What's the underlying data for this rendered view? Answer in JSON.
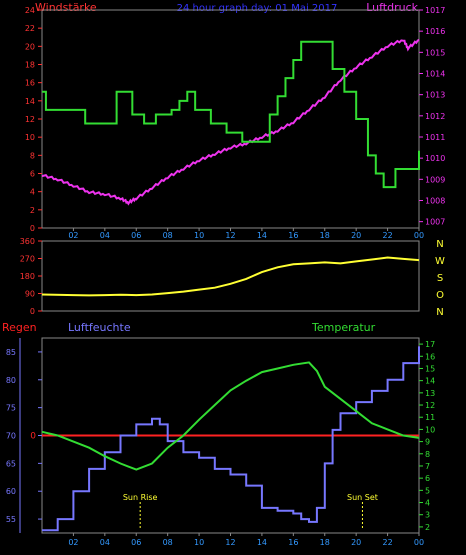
{
  "header": {
    "left_label": "Windstärke",
    "title": "24 hour graph day: 01 Mai 2017",
    "right_label": "Luftdruck"
  },
  "colors": {
    "wind": "#33dd33",
    "pressure": "#ee33ee",
    "direction": "#ffff33",
    "humidity": "#7777ff",
    "temperature": "#33dd33",
    "rain": "#ff2222",
    "axis_left": "#ff3333",
    "axis_right": "#ee33ee",
    "axis_hum": "#7777ff",
    "axis_temp": "#33dd33",
    "time": "#3399ff",
    "dir": "#ffff33"
  },
  "hour_labels": [
    "02",
    "04",
    "06",
    "08",
    "10",
    "12",
    "14",
    "16",
    "18",
    "20",
    "22",
    "00"
  ],
  "chart_data": [
    {
      "type": "line",
      "name": "wind-pressure",
      "x_hours": [
        0,
        24
      ],
      "left_axis": {
        "label": "Windstärke",
        "ticks": [
          0,
          2,
          4,
          6,
          8,
          10,
          12,
          14,
          16,
          18,
          20,
          22,
          24
        ],
        "range": [
          0,
          24
        ]
      },
      "right_axis": {
        "label": "Luftdruck",
        "ticks": [
          1007,
          1008,
          1009,
          1010,
          1011,
          1012,
          1013,
          1014,
          1015,
          1016,
          1017
        ],
        "range": [
          1006.7,
          1017
        ]
      },
      "wind_steps": [
        [
          0,
          15
        ],
        [
          0.25,
          13
        ],
        [
          2.75,
          11.5
        ],
        [
          4.75,
          15
        ],
        [
          5.75,
          12.5
        ],
        [
          6.5,
          11.5
        ],
        [
          7.25,
          12.5
        ],
        [
          8.25,
          13
        ],
        [
          8.75,
          14
        ],
        [
          9.25,
          15
        ],
        [
          9.75,
          13
        ],
        [
          10.75,
          11.5
        ],
        [
          11.75,
          10.5
        ],
        [
          12.75,
          9.5
        ],
        [
          14.5,
          12.5
        ],
        [
          15,
          14.5
        ],
        [
          15.5,
          16.5
        ],
        [
          16,
          18.5
        ],
        [
          16.5,
          20.5
        ],
        [
          18.5,
          17.5
        ],
        [
          19.25,
          15
        ],
        [
          20,
          12
        ],
        [
          20.75,
          8
        ],
        [
          21.25,
          6
        ],
        [
          21.75,
          4.5
        ],
        [
          22.5,
          6.5
        ],
        [
          24,
          8.5
        ]
      ],
      "pressure": [
        [
          0,
          1009.2
        ],
        [
          1,
          1009
        ],
        [
          2,
          1008.7
        ],
        [
          3,
          1008.4
        ],
        [
          4,
          1008.3
        ],
        [
          5,
          1008.1
        ],
        [
          5.5,
          1007.9
        ],
        [
          6,
          1008.1
        ],
        [
          7,
          1008.6
        ],
        [
          8,
          1009.1
        ],
        [
          9,
          1009.5
        ],
        [
          10,
          1009.9
        ],
        [
          11,
          1010.2
        ],
        [
          12,
          1010.5
        ],
        [
          13,
          1010.7
        ],
        [
          14,
          1011
        ],
        [
          15,
          1011.3
        ],
        [
          16,
          1011.7
        ],
        [
          17,
          1012.3
        ],
        [
          18,
          1012.9
        ],
        [
          19,
          1013.7
        ],
        [
          20,
          1014.3
        ],
        [
          21,
          1014.8
        ],
        [
          22,
          1015.3
        ],
        [
          23,
          1015.6
        ],
        [
          23.3,
          1015.2
        ],
        [
          24,
          1015.6
        ]
      ]
    },
    {
      "type": "line",
      "name": "wind-direction",
      "left_axis": {
        "ticks": [
          0,
          90,
          180,
          270,
          360
        ],
        "range": [
          0,
          360
        ]
      },
      "right_labels": [
        "N",
        "W",
        "S",
        "O",
        "N"
      ],
      "direction": [
        [
          0,
          85
        ],
        [
          2,
          82
        ],
        [
          3,
          80
        ],
        [
          4,
          82
        ],
        [
          5,
          84
        ],
        [
          6,
          82
        ],
        [
          7,
          85
        ],
        [
          8,
          92
        ],
        [
          9,
          100
        ],
        [
          10,
          110
        ],
        [
          11,
          120
        ],
        [
          12,
          140
        ],
        [
          13,
          165
        ],
        [
          14,
          200
        ],
        [
          15,
          225
        ],
        [
          16,
          240
        ],
        [
          17,
          245
        ],
        [
          18,
          250
        ],
        [
          19,
          245
        ],
        [
          20,
          255
        ],
        [
          21,
          265
        ],
        [
          22,
          275
        ],
        [
          23,
          268
        ],
        [
          24,
          262
        ]
      ]
    },
    {
      "type": "line",
      "name": "hum-temp",
      "left_labels": {
        "rain": "Regen",
        "humidity": "Luftfeuchte"
      },
      "right_label": "Temperatur",
      "hum_axis": {
        "ticks": [
          55,
          60,
          65,
          70,
          75,
          80,
          85
        ],
        "range": [
          52.5,
          87.5
        ]
      },
      "temp_axis": {
        "ticks": [
          2,
          3,
          4,
          5,
          6,
          7,
          8,
          9,
          10,
          11,
          12,
          13,
          14,
          15,
          16,
          17
        ],
        "range": [
          1.5,
          17.5
        ]
      },
      "rain": {
        "value": 0,
        "label": "0"
      },
      "humidity": [
        [
          0,
          53
        ],
        [
          1,
          55
        ],
        [
          2,
          60
        ],
        [
          3,
          64
        ],
        [
          4,
          67
        ],
        [
          5,
          70
        ],
        [
          6,
          72
        ],
        [
          7,
          73
        ],
        [
          7.5,
          72
        ],
        [
          8,
          69
        ],
        [
          9,
          67
        ],
        [
          10,
          66
        ],
        [
          11,
          64
        ],
        [
          12,
          63
        ],
        [
          13,
          61
        ],
        [
          14,
          57
        ],
        [
          15,
          56.5
        ],
        [
          16,
          56
        ],
        [
          16.5,
          55
        ],
        [
          17,
          54.5
        ],
        [
          17.5,
          57
        ],
        [
          18,
          65
        ],
        [
          18.5,
          71
        ],
        [
          19,
          74
        ],
        [
          20,
          76
        ],
        [
          21,
          78
        ],
        [
          22,
          80
        ],
        [
          23,
          83
        ],
        [
          24,
          86
        ]
      ],
      "temperature": [
        [
          0,
          9.8
        ],
        [
          1,
          9.5
        ],
        [
          2,
          9
        ],
        [
          3,
          8.5
        ],
        [
          4,
          7.8
        ],
        [
          5,
          7.2
        ],
        [
          6,
          6.7
        ],
        [
          7,
          7.2
        ],
        [
          8,
          8.5
        ],
        [
          9,
          9.5
        ],
        [
          10,
          10.8
        ],
        [
          11,
          12
        ],
        [
          12,
          13.2
        ],
        [
          13,
          14
        ],
        [
          14,
          14.7
        ],
        [
          15,
          15
        ],
        [
          16,
          15.3
        ],
        [
          17,
          15.5
        ],
        [
          17.5,
          14.8
        ],
        [
          18,
          13.5
        ],
        [
          19,
          12.5
        ],
        [
          20,
          11.5
        ],
        [
          21,
          10.5
        ],
        [
          22,
          10
        ],
        [
          23,
          9.5
        ],
        [
          24,
          9.3
        ]
      ],
      "markers": [
        {
          "hour": 6.25,
          "label": "Sun Rise"
        },
        {
          "hour": 20.4,
          "label": "Sun Set"
        }
      ]
    }
  ]
}
